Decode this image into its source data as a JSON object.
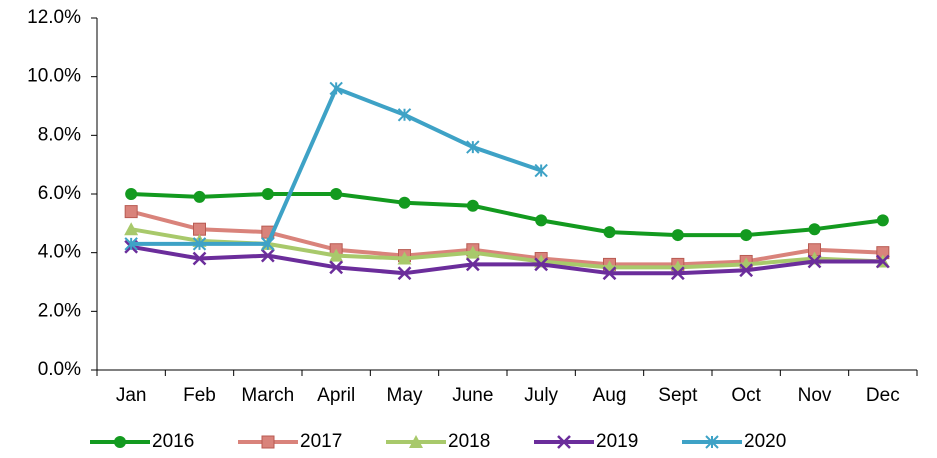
{
  "chart_data": {
    "type": "line",
    "categories": [
      "Jan",
      "Feb",
      "March",
      "April",
      "May",
      "June",
      "July",
      "Aug",
      "Sept",
      "Oct",
      "Nov",
      "Dec"
    ],
    "series": [
      {
        "name": "2016",
        "color": "#139a1f",
        "marker": "circle",
        "values": [
          6.0,
          5.9,
          6.0,
          6.0,
          5.7,
          5.6,
          5.1,
          4.7,
          4.6,
          4.6,
          4.8,
          5.1
        ]
      },
      {
        "name": "2017",
        "color": "#d9837b",
        "marker": "square",
        "values": [
          5.4,
          4.8,
          4.7,
          4.1,
          3.9,
          4.1,
          3.8,
          3.6,
          3.6,
          3.7,
          4.1,
          4.0
        ]
      },
      {
        "name": "2018",
        "color": "#a8c96b",
        "marker": "triangle",
        "values": [
          4.8,
          4.4,
          4.3,
          3.9,
          3.8,
          4.0,
          3.7,
          3.5,
          3.5,
          3.6,
          3.8,
          3.7
        ]
      },
      {
        "name": "2019",
        "color": "#6b2d9b",
        "marker": "x",
        "values": [
          4.2,
          3.8,
          3.9,
          3.5,
          3.3,
          3.6,
          3.6,
          3.3,
          3.3,
          3.4,
          3.7,
          3.7
        ]
      },
      {
        "name": "2020",
        "color": "#3ea2c6",
        "marker": "asterisk",
        "values": [
          4.3,
          4.3,
          4.3,
          9.6,
          8.7,
          7.6,
          6.8,
          null,
          null,
          null,
          null,
          null
        ]
      }
    ],
    "ylim": [
      0,
      12
    ],
    "yticks": [
      {
        "value": 0,
        "label": "0.0%"
      },
      {
        "value": 2,
        "label": "2.0%"
      },
      {
        "value": 4,
        "label": "4.0%"
      },
      {
        "value": 6,
        "label": "6.0%"
      },
      {
        "value": 8,
        "label": "8.0%"
      },
      {
        "value": 10,
        "label": "10.0%"
      },
      {
        "value": 12,
        "label": "12.0%"
      }
    ],
    "grid": false,
    "legend": "bottom"
  }
}
